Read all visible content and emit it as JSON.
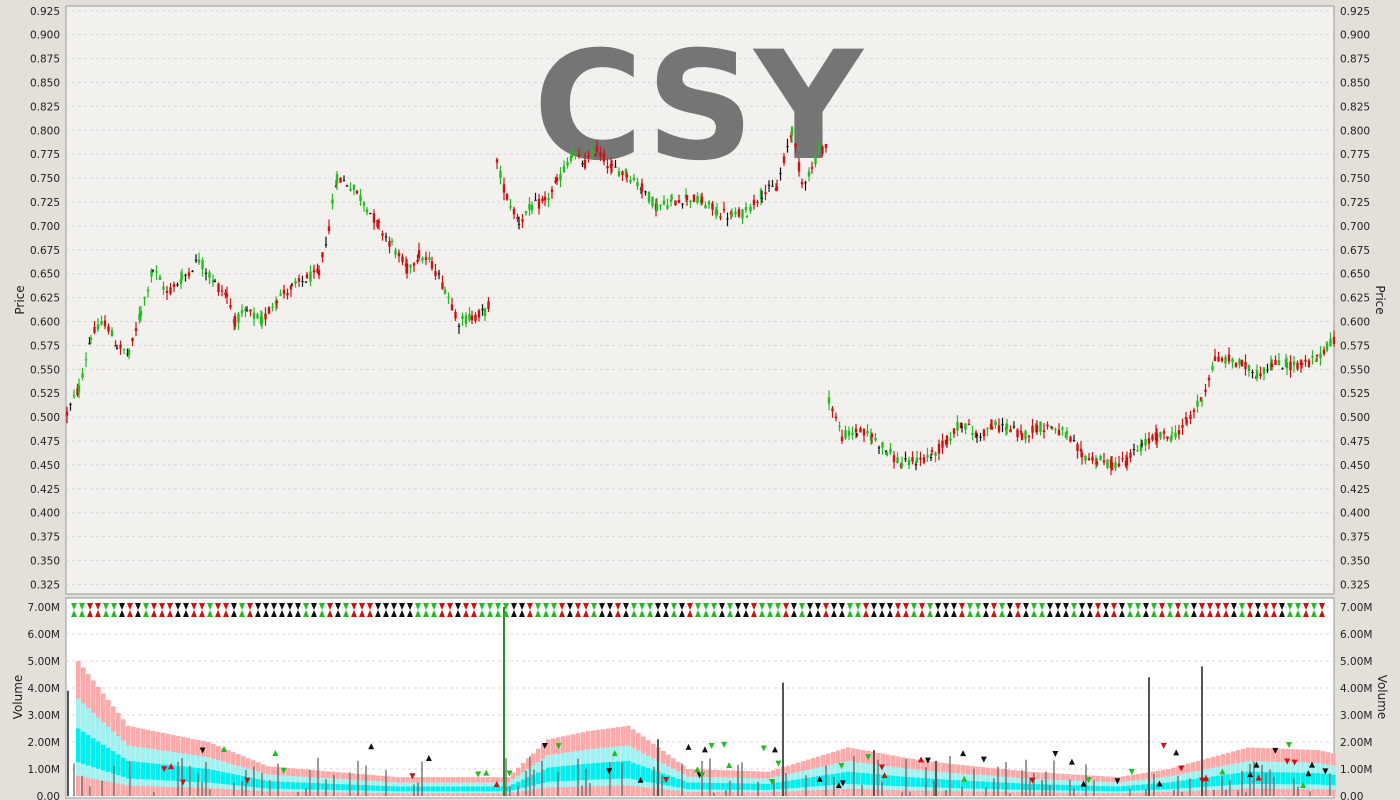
{
  "chart_data": [
    {
      "type": "ohlc",
      "title": "CSY",
      "ylabel": "Price",
      "ylim": [
        0.315,
        0.93
      ],
      "yticks": [
        "0.325",
        "0.350",
        "0.375",
        "0.400",
        "0.425",
        "0.450",
        "0.475",
        "0.500",
        "0.525",
        "0.550",
        "0.575",
        "0.600",
        "0.625",
        "0.650",
        "0.675",
        "0.700",
        "0.725",
        "0.750",
        "0.775",
        "0.800",
        "0.825",
        "0.850",
        "0.875",
        "0.900",
        "0.925"
      ],
      "grid": true,
      "segments": [
        {
          "points": [
            [
              0,
              0.504
            ],
            [
              12,
              0.53
            ],
            [
              24,
              0.585
            ],
            [
              38,
              0.6
            ],
            [
              50,
              0.575
            ],
            [
              62,
              0.565
            ],
            [
              74,
              0.61
            ],
            [
              86,
              0.655
            ],
            [
              100,
              0.63
            ],
            [
              115,
              0.645
            ],
            [
              132,
              0.665
            ],
            [
              148,
              0.64
            ],
            [
              160,
              0.628
            ],
            [
              168,
              0.6
            ],
            [
              180,
              0.61
            ],
            [
              195,
              0.6
            ],
            [
              210,
              0.625
            ],
            [
              225,
              0.635
            ],
            [
              240,
              0.645
            ],
            [
              252,
              0.65
            ],
            [
              262,
              0.7
            ],
            [
              270,
              0.75
            ],
            [
              280,
              0.745
            ],
            [
              290,
              0.735
            ],
            [
              300,
              0.72
            ],
            [
              312,
              0.7
            ],
            [
              325,
              0.68
            ],
            [
              340,
              0.655
            ],
            [
              352,
              0.67
            ],
            [
              365,
              0.66
            ],
            [
              378,
              0.635
            ],
            [
              392,
              0.6
            ],
            [
              405,
              0.605
            ],
            [
              418,
              0.61
            ],
            [
              425,
              0.625
            ]
          ]
        },
        {
          "points": [
            [
              430,
              0.765
            ],
            [
              440,
              0.73
            ],
            [
              452,
              0.705
            ],
            [
              465,
              0.72
            ],
            [
              478,
              0.725
            ],
            [
              490,
              0.745
            ],
            [
              505,
              0.775
            ],
            [
              518,
              0.765
            ],
            [
              530,
              0.78
            ],
            [
              545,
              0.76
            ],
            [
              560,
              0.755
            ],
            [
              575,
              0.74
            ],
            [
              590,
              0.72
            ],
            [
              605,
              0.725
            ],
            [
              620,
              0.73
            ],
            [
              635,
              0.725
            ],
            [
              650,
              0.715
            ],
            [
              665,
              0.71
            ],
            [
              680,
              0.715
            ],
            [
              695,
              0.735
            ],
            [
              710,
              0.74
            ],
            [
              725,
              0.8
            ],
            [
              735,
              0.745
            ],
            [
              745,
              0.76
            ],
            [
              752,
              0.78
            ],
            [
              760,
              0.782
            ]
          ]
        },
        {
          "points": [
            [
              762,
              0.52
            ],
            [
              775,
              0.48
            ],
            [
              790,
              0.485
            ],
            [
              805,
              0.48
            ],
            [
              820,
              0.465
            ],
            [
              835,
              0.45
            ],
            [
              850,
              0.455
            ],
            [
              865,
              0.46
            ],
            [
              880,
              0.475
            ],
            [
              895,
              0.495
            ],
            [
              910,
              0.48
            ],
            [
              925,
              0.49
            ],
            [
              940,
              0.49
            ],
            [
              955,
              0.48
            ],
            [
              970,
              0.49
            ],
            [
              985,
              0.49
            ],
            [
              1000,
              0.48
            ],
            [
              1015,
              0.46
            ],
            [
              1030,
              0.455
            ],
            [
              1045,
              0.45
            ],
            [
              1060,
              0.455
            ],
            [
              1075,
              0.47
            ],
            [
              1090,
              0.48
            ],
            [
              1105,
              0.48
            ],
            [
              1120,
              0.495
            ],
            [
              1135,
              0.52
            ],
            [
              1148,
              0.56
            ],
            [
              1162,
              0.56
            ],
            [
              1175,
              0.555
            ],
            [
              1190,
              0.545
            ],
            [
              1205,
              0.555
            ],
            [
              1220,
              0.555
            ],
            [
              1235,
              0.555
            ],
            [
              1250,
              0.56
            ],
            [
              1260,
              0.575
            ],
            [
              1270,
              0.585
            ]
          ]
        }
      ]
    },
    {
      "type": "bar",
      "ylabel": "Volume",
      "ylim": [
        0,
        7000000
      ],
      "yticks": [
        "0.00",
        "1.00M",
        "2.00M",
        "3.00M",
        "4.00M",
        "5.00M",
        "6.00M",
        "7.00M"
      ],
      "spikes": [
        [
          2,
          3900000
        ],
        [
          438,
          7000000
        ],
        [
          717,
          4200000
        ],
        [
          1083,
          4400000
        ],
        [
          1136,
          4800000
        ],
        [
          592,
          2100000
        ],
        [
          808,
          1700000
        ],
        [
          870,
          1300000
        ]
      ],
      "band_peaks": [
        [
          10,
          5000000
        ],
        [
          60,
          2600000
        ],
        [
          140,
          2000000
        ],
        [
          200,
          1100000
        ],
        [
          330,
          700000
        ],
        [
          440,
          700000
        ],
        [
          480,
          2100000
        ],
        [
          520,
          2400000
        ],
        [
          560,
          2600000
        ],
        [
          620,
          1000000
        ],
        [
          700,
          900000
        ],
        [
          780,
          1800000
        ],
        [
          840,
          1400000
        ],
        [
          880,
          1200000
        ],
        [
          960,
          900000
        ],
        [
          1050,
          700000
        ],
        [
          1100,
          1000000
        ],
        [
          1180,
          1800000
        ],
        [
          1250,
          1700000
        ],
        [
          1300,
          1300000
        ]
      ],
      "top_markers": true
    }
  ],
  "colors": {
    "up": "#22bb22",
    "down": "#cc1111",
    "neutral": "#111111",
    "band_outer": "#ffaaaa",
    "band_mid": "#9ff2f2",
    "band_inner": "#00f0f0",
    "plot_bg": "#f2f1ee",
    "volume_bg": "#ffffff",
    "grid": "#d8d8d8",
    "ghost_text": "#6e6e6e"
  }
}
